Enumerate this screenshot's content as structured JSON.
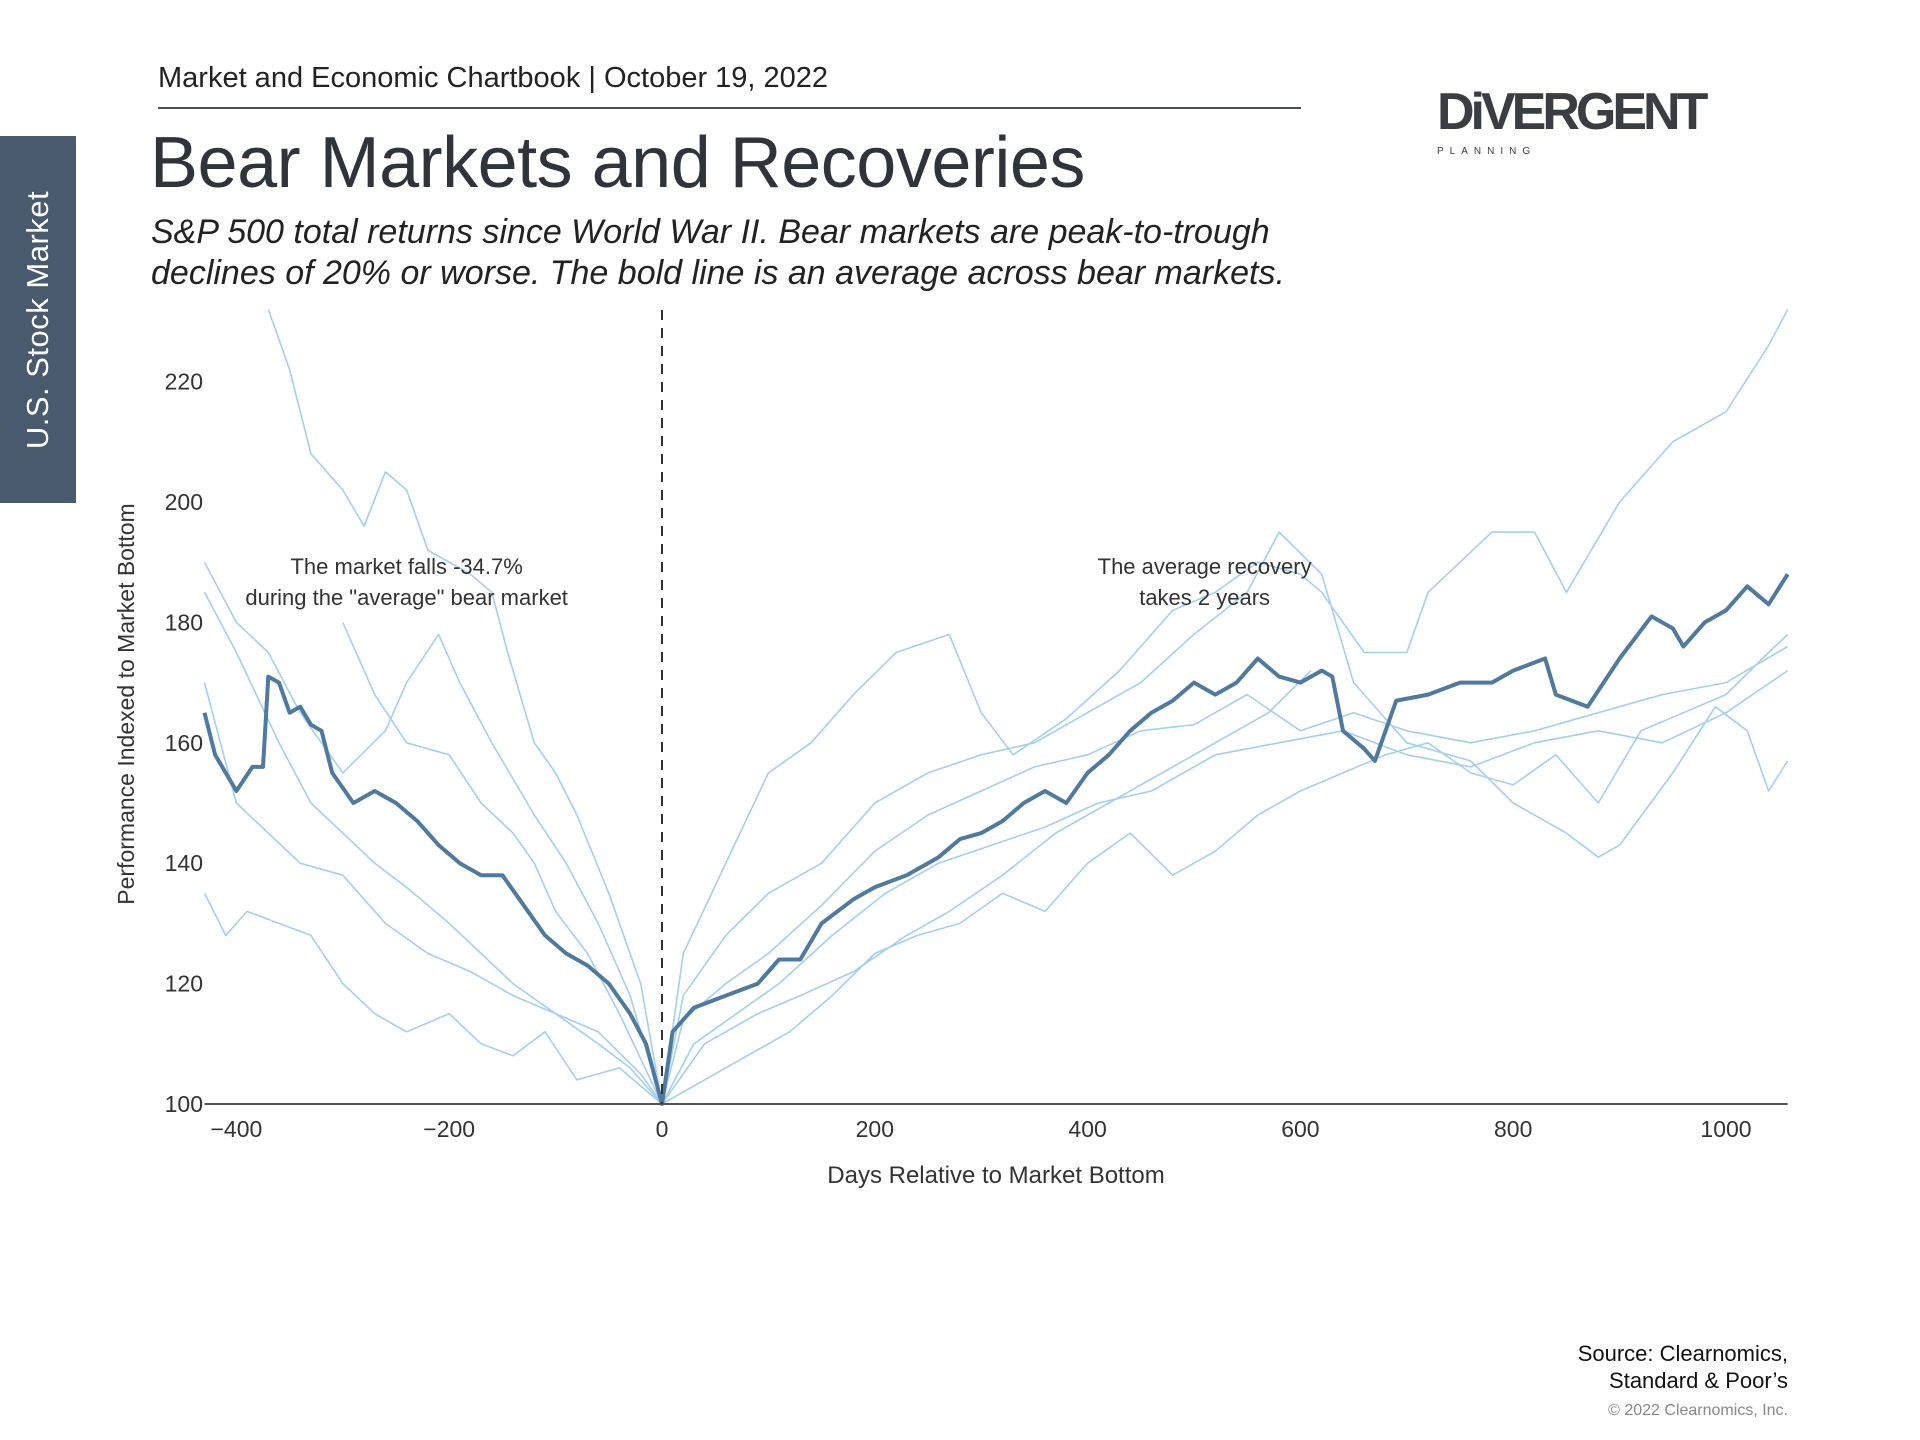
{
  "header": {
    "text": "Market and Economic Chartbook | October 19, 2022"
  },
  "title": "Bear Markets and Recoveries",
  "subtitle": [
    "S&P 500 total returns since World War II. Bear markets are peak-to-trough",
    "declines of 20% or worse. The bold line is an average across bear markets."
  ],
  "side_tab": {
    "label": "U.S. Stock Market",
    "color": "#4a5a6e"
  },
  "logo": {
    "text": "DIVERGENT",
    "sub": "PLANNING"
  },
  "source": {
    "line1": "Source: Clearnomics,",
    "line2": "Standard & Poor’s",
    "copyright": "© 2022 Clearnomics, Inc."
  },
  "chart_data": {
    "type": "line",
    "xlabel": "Days Relative to Market Bottom",
    "ylabel": "Performance Indexed to Market Bottom",
    "xlim": [
      -430,
      1058
    ],
    "ylim": [
      100,
      234
    ],
    "xticks": [
      -400,
      -200,
      0,
      200,
      400,
      600,
      800,
      1000
    ],
    "xtick_labels": [
      "−400",
      "−200",
      "0",
      "200",
      "400",
      "600",
      "800",
      "1000"
    ],
    "yticks": [
      100,
      120,
      140,
      160,
      180,
      200,
      220
    ],
    "vline_x": 0,
    "grid": false,
    "annotations": [
      {
        "lines": [
          "The market falls -34.7%",
          "during the \"average\" bear market"
        ],
        "x": -240,
        "y": 188
      },
      {
        "lines": [
          "The average recovery",
          "takes 2 years"
        ],
        "x": 510,
        "y": 188
      }
    ],
    "colors": {
      "average": "#4f7aa0",
      "individual": "#a3cff0",
      "axis": "#555555"
    },
    "average": [
      [
        -430,
        165
      ],
      [
        -420,
        158
      ],
      [
        -400,
        152
      ],
      [
        -385,
        156
      ],
      [
        -375,
        156
      ],
      [
        -370,
        171
      ],
      [
        -360,
        170
      ],
      [
        -350,
        165
      ],
      [
        -340,
        166
      ],
      [
        -330,
        163
      ],
      [
        -320,
        162
      ],
      [
        -310,
        155
      ],
      [
        -290,
        150
      ],
      [
        -270,
        152
      ],
      [
        -250,
        150
      ],
      [
        -230,
        147
      ],
      [
        -210,
        143
      ],
      [
        -190,
        140
      ],
      [
        -170,
        138
      ],
      [
        -150,
        138
      ],
      [
        -130,
        133
      ],
      [
        -110,
        128
      ],
      [
        -90,
        125
      ],
      [
        -70,
        123
      ],
      [
        -50,
        120
      ],
      [
        -30,
        115
      ],
      [
        -15,
        110
      ],
      [
        0,
        100
      ],
      [
        10,
        112
      ],
      [
        30,
        116
      ],
      [
        60,
        118
      ],
      [
        90,
        120
      ],
      [
        110,
        124
      ],
      [
        130,
        124
      ],
      [
        150,
        130
      ],
      [
        180,
        134
      ],
      [
        200,
        136
      ],
      [
        230,
        138
      ],
      [
        260,
        141
      ],
      [
        280,
        144
      ],
      [
        300,
        145
      ],
      [
        320,
        147
      ],
      [
        340,
        150
      ],
      [
        360,
        152
      ],
      [
        380,
        150
      ],
      [
        400,
        155
      ],
      [
        420,
        158
      ],
      [
        440,
        162
      ],
      [
        460,
        165
      ],
      [
        480,
        167
      ],
      [
        500,
        170
      ],
      [
        520,
        168
      ],
      [
        540,
        170
      ],
      [
        560,
        174
      ],
      [
        580,
        171
      ],
      [
        600,
        170
      ],
      [
        620,
        172
      ],
      [
        630,
        171
      ],
      [
        640,
        162
      ],
      [
        660,
        159
      ],
      [
        670,
        157
      ],
      [
        690,
        167
      ],
      [
        720,
        168
      ],
      [
        750,
        170
      ],
      [
        780,
        170
      ],
      [
        800,
        172
      ],
      [
        830,
        174
      ],
      [
        840,
        168
      ],
      [
        870,
        166
      ],
      [
        900,
        174
      ],
      [
        930,
        181
      ],
      [
        950,
        179
      ],
      [
        960,
        176
      ],
      [
        980,
        180
      ],
      [
        1000,
        182
      ],
      [
        1020,
        186
      ],
      [
        1040,
        183
      ],
      [
        1058,
        188
      ]
    ],
    "individual": [
      [
        [
          -370,
          232
        ],
        [
          -350,
          222
        ],
        [
          -330,
          208
        ],
        [
          -300,
          202
        ],
        [
          -280,
          196
        ],
        [
          -260,
          205
        ],
        [
          -240,
          202
        ],
        [
          -220,
          192
        ],
        [
          -200,
          190
        ],
        [
          -180,
          188
        ],
        [
          -160,
          185
        ],
        [
          -145,
          175
        ],
        [
          -120,
          160
        ],
        [
          -100,
          155
        ],
        [
          -80,
          148
        ],
        [
          -50,
          135
        ],
        [
          -20,
          120
        ],
        [
          0,
          100
        ],
        [
          20,
          125
        ],
        [
          60,
          140
        ],
        [
          100,
          155
        ],
        [
          140,
          160
        ],
        [
          180,
          168
        ],
        [
          220,
          175
        ],
        [
          270,
          178
        ],
        [
          300,
          165
        ],
        [
          330,
          158
        ],
        [
          380,
          164
        ],
        [
          430,
          172
        ],
        [
          480,
          182
        ],
        [
          520,
          185
        ],
        [
          560,
          190
        ],
        [
          600,
          188
        ],
        [
          620,
          185
        ],
        [
          660,
          175
        ],
        [
          700,
          175
        ],
        [
          720,
          185
        ],
        [
          780,
          195
        ],
        [
          820,
          195
        ],
        [
          850,
          185
        ],
        [
          900,
          200
        ],
        [
          950,
          210
        ],
        [
          1000,
          215
        ],
        [
          1040,
          226
        ],
        [
          1058,
          232
        ]
      ],
      [
        [
          -430,
          190
        ],
        [
          -400,
          180
        ],
        [
          -370,
          175
        ],
        [
          -340,
          165
        ],
        [
          -300,
          155
        ],
        [
          -260,
          162
        ],
        [
          -240,
          170
        ],
        [
          -210,
          178
        ],
        [
          -190,
          170
        ],
        [
          -160,
          160
        ],
        [
          -120,
          148
        ],
        [
          -90,
          140
        ],
        [
          -60,
          130
        ],
        [
          -30,
          118
        ],
        [
          0,
          100
        ],
        [
          20,
          118
        ],
        [
          60,
          128
        ],
        [
          100,
          135
        ],
        [
          150,
          140
        ],
        [
          200,
          150
        ],
        [
          250,
          155
        ],
        [
          300,
          158
        ],
        [
          350,
          160
        ],
        [
          400,
          165
        ],
        [
          450,
          170
        ],
        [
          500,
          178
        ],
        [
          550,
          185
        ],
        [
          580,
          195
        ],
        [
          620,
          188
        ],
        [
          650,
          170
        ],
        [
          700,
          160
        ],
        [
          760,
          157
        ],
        [
          800,
          150
        ],
        [
          850,
          145
        ],
        [
          880,
          141
        ],
        [
          900,
          143
        ],
        [
          950,
          155
        ],
        [
          990,
          166
        ],
        [
          1020,
          162
        ],
        [
          1040,
          152
        ],
        [
          1058,
          157
        ]
      ],
      [
        [
          -430,
          135
        ],
        [
          -410,
          128
        ],
        [
          -390,
          132
        ],
        [
          -360,
          130
        ],
        [
          -330,
          128
        ],
        [
          -300,
          120
        ],
        [
          -270,
          115
        ],
        [
          -240,
          112
        ],
        [
          -200,
          115
        ],
        [
          -170,
          110
        ],
        [
          -140,
          108
        ],
        [
          -110,
          112
        ],
        [
          -80,
          104
        ],
        [
          -40,
          106
        ],
        [
          0,
          100
        ],
        [
          40,
          104
        ],
        [
          80,
          108
        ],
        [
          120,
          112
        ],
        [
          160,
          118
        ],
        [
          200,
          125
        ],
        [
          240,
          128
        ],
        [
          280,
          130
        ],
        [
          320,
          135
        ],
        [
          360,
          132
        ],
        [
          400,
          140
        ],
        [
          440,
          145
        ],
        [
          480,
          138
        ],
        [
          520,
          142
        ],
        [
          560,
          148
        ],
        [
          600,
          152
        ],
        [
          640,
          155
        ],
        [
          680,
          158
        ],
        [
          720,
          160
        ],
        [
          760,
          155
        ],
        [
          800,
          153
        ],
        [
          840,
          158
        ],
        [
          880,
          150
        ],
        [
          920,
          162
        ],
        [
          960,
          165
        ],
        [
          1000,
          168
        ],
        [
          1040,
          175
        ],
        [
          1058,
          178
        ]
      ],
      [
        [
          -430,
          170
        ],
        [
          -400,
          150
        ],
        [
          -370,
          145
        ],
        [
          -340,
          140
        ],
        [
          -300,
          138
        ],
        [
          -260,
          130
        ],
        [
          -220,
          125
        ],
        [
          -180,
          122
        ],
        [
          -140,
          118
        ],
        [
          -100,
          115
        ],
        [
          -60,
          110
        ],
        [
          -30,
          106
        ],
        [
          0,
          100
        ],
        [
          30,
          110
        ],
        [
          70,
          115
        ],
        [
          110,
          120
        ],
        [
          160,
          128
        ],
        [
          210,
          135
        ],
        [
          260,
          140
        ],
        [
          310,
          143
        ],
        [
          360,
          146
        ],
        [
          410,
          150
        ],
        [
          460,
          152
        ],
        [
          520,
          158
        ],
        [
          580,
          160
        ],
        [
          640,
          162
        ],
        [
          700,
          158
        ],
        [
          760,
          156
        ],
        [
          820,
          160
        ],
        [
          880,
          162
        ],
        [
          940,
          160
        ],
        [
          1000,
          165
        ],
        [
          1058,
          172
        ]
      ],
      [
        [
          -430,
          185
        ],
        [
          -400,
          175
        ],
        [
          -360,
          160
        ],
        [
          -330,
          150
        ],
        [
          -300,
          145
        ],
        [
          -270,
          140
        ],
        [
          -240,
          136
        ],
        [
          -200,
          130
        ],
        [
          -170,
          125
        ],
        [
          -140,
          120
        ],
        [
          -100,
          115
        ],
        [
          -60,
          112
        ],
        [
          -20,
          105
        ],
        [
          0,
          100
        ],
        [
          20,
          114
        ],
        [
          60,
          120
        ],
        [
          100,
          125
        ],
        [
          150,
          133
        ],
        [
          200,
          142
        ],
        [
          250,
          148
        ],
        [
          300,
          152
        ],
        [
          350,
          156
        ],
        [
          400,
          158
        ],
        [
          450,
          162
        ],
        [
          500,
          163
        ],
        [
          550,
          168
        ],
        [
          600,
          162
        ],
        [
          650,
          165
        ],
        [
          700,
          162
        ],
        [
          760,
          160
        ],
        [
          820,
          162
        ],
        [
          880,
          165
        ],
        [
          940,
          168
        ],
        [
          1000,
          170
        ],
        [
          1058,
          176
        ]
      ],
      [
        [
          -300,
          180
        ],
        [
          -270,
          168
        ],
        [
          -240,
          160
        ],
        [
          -200,
          158
        ],
        [
          -170,
          150
        ],
        [
          -140,
          145
        ],
        [
          -120,
          140
        ],
        [
          -100,
          132
        ],
        [
          -70,
          125
        ],
        [
          -40,
          115
        ],
        [
          0,
          100
        ],
        [
          40,
          110
        ],
        [
          90,
          115
        ],
        [
          130,
          118
        ],
        [
          180,
          122
        ],
        [
          230,
          128
        ],
        [
          270,
          132
        ],
        [
          320,
          138
        ],
        [
          370,
          145
        ],
        [
          420,
          150
        ],
        [
          470,
          155
        ],
        [
          520,
          160
        ],
        [
          570,
          165
        ],
        [
          610,
          172
        ]
      ]
    ]
  }
}
